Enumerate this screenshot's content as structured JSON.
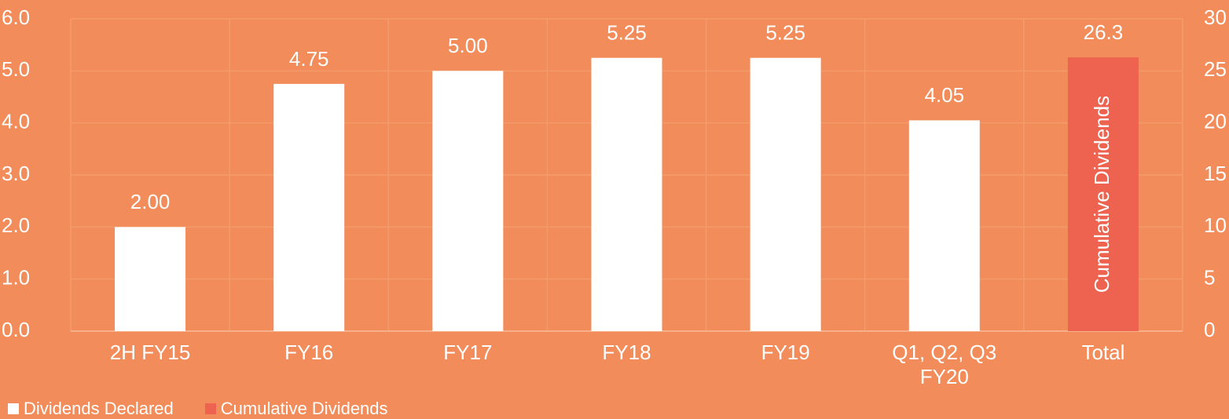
{
  "chart_data": {
    "type": "bar",
    "categories": [
      "2H FY15",
      "FY16",
      "FY17",
      "FY18",
      "FY19",
      "Q1, Q2, Q3 FY20",
      "Total"
    ],
    "series": [
      {
        "name": "Dividends Declared",
        "color": "#ffffff",
        "values": [
          2.0,
          4.75,
          5.0,
          5.25,
          5.25,
          4.05,
          null
        ],
        "value_labels": [
          "2.00",
          "4.75",
          "5.00",
          "5.25",
          "5.25",
          "4.05",
          null
        ]
      },
      {
        "name": "Cumulative Dividends",
        "color": "#ee6350",
        "axis": "y2",
        "values": [
          null,
          null,
          null,
          null,
          null,
          null,
          26.3
        ],
        "value_labels": [
          null,
          null,
          null,
          null,
          null,
          null,
          "26.3"
        ]
      }
    ],
    "ylim": [
      0,
      6
    ],
    "yticks": [
      {
        "value": 0,
        "label": "0.0"
      },
      {
        "value": 1,
        "label": "1.0"
      },
      {
        "value": 2,
        "label": "2.0"
      },
      {
        "value": 3,
        "label": "3.0"
      },
      {
        "value": 4,
        "label": "4.0"
      },
      {
        "value": 5,
        "label": "5.0"
      },
      {
        "value": 6,
        "label": "6.0"
      }
    ],
    "y2lim": [
      0,
      30
    ],
    "y2ticks": [
      0,
      5,
      10,
      15,
      20,
      25,
      30
    ],
    "grid": true,
    "legend": "bottom-left"
  }
}
